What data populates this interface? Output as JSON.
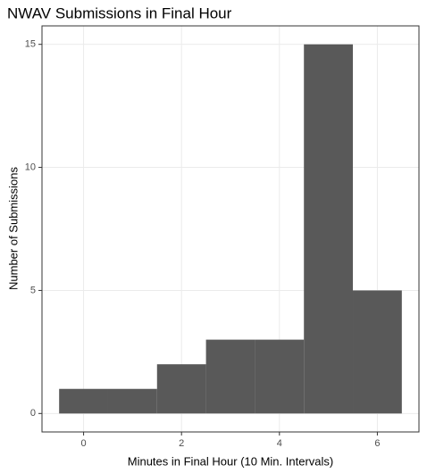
{
  "chart_data": {
    "type": "histogram",
    "title": "NWAV Submissions in Final Hour",
    "x_label": "Minutes in Final Hour (10 Min. Intervals)",
    "y_label": "Number of Submissions",
    "bins": [
      -0.5,
      0.5,
      1.5,
      2.5,
      3.5,
      4.5,
      5.5,
      6.5
    ],
    "counts": [
      1,
      1,
      2,
      3,
      3,
      15,
      5
    ],
    "color": "#595959",
    "xlim": [
      -0.85,
      6.85
    ],
    "xticks": [
      0,
      2,
      4,
      6
    ],
    "ylim": [
      -0.75,
      15.75
    ],
    "yticks": [
      0,
      5,
      10,
      15
    ],
    "grid": true
  }
}
